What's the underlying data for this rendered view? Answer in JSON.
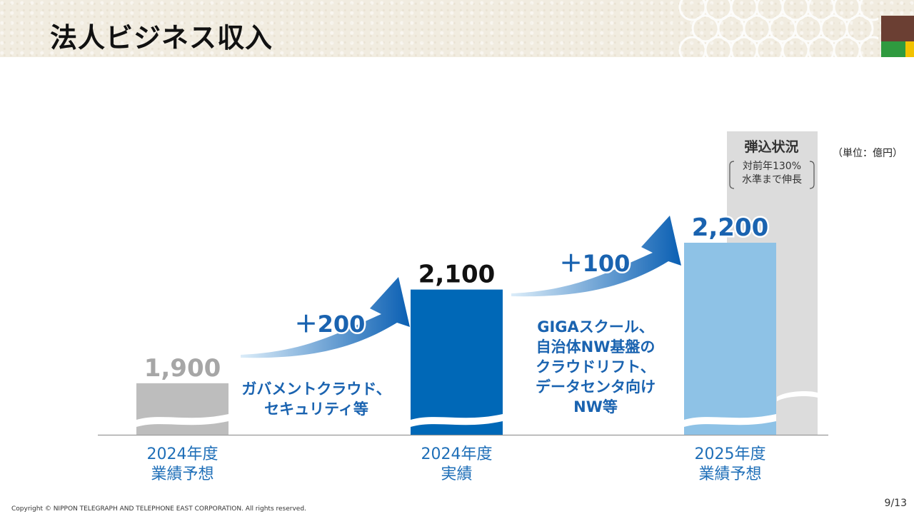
{
  "header": {
    "title": "法人ビジネス収入"
  },
  "unit_note": "（単位：億円）",
  "progress_box": {
    "title": "弾込状況",
    "note_line1": "対前年130%",
    "note_line2": "水準まで伸長"
  },
  "colors": {
    "gray_bar": "#bdbdbd",
    "actual_bar": "#0068b7",
    "forecast_bar": "#8ec2e6",
    "progress_bar": "#dcdcdc",
    "delta_text": "#1a63b0",
    "arrow_dark": "#0a5fb3",
    "arrow_light": "#d8ebf8",
    "gray_value": "#a6a6a6",
    "label_text": "#1f6fb8"
  },
  "chart_data": {
    "type": "bar",
    "categories": [
      "2024年度 業績予想",
      "2024年度 実績",
      "2025年度 業績予想"
    ],
    "category_labels": [
      [
        "2024年度",
        "業績予想"
      ],
      [
        "2024年度",
        "実績"
      ],
      [
        "2025年度",
        "業績予想"
      ]
    ],
    "values": [
      1900,
      2100,
      2200
    ],
    "value_labels": [
      "1,900",
      "2,100",
      "2,200"
    ],
    "axis_break": true,
    "increments": [
      {
        "label": "＋200",
        "value": 200,
        "from": "2024年度 業績予想",
        "to": "2024年度 実績",
        "note": [
          "ガバメントクラウド、",
          "セキュリティ等"
        ]
      },
      {
        "label": "＋100",
        "value": 100,
        "from": "2024年度 実績",
        "to": "2025年度 業績予想",
        "note": [
          "GIGAスクール、",
          "自治体NW基盤の",
          "クラウドリフト、",
          "データセンタ向け",
          "NW等"
        ]
      }
    ],
    "progress": {
      "title": "弾込状況",
      "relative_to_previous_year_percent": 130
    }
  },
  "footer": {
    "copyright": "Copyright © NIPPON TELEGRAPH AND TELEPHONE EAST CORPORATION. All rights reserved.",
    "page": "9/13"
  }
}
